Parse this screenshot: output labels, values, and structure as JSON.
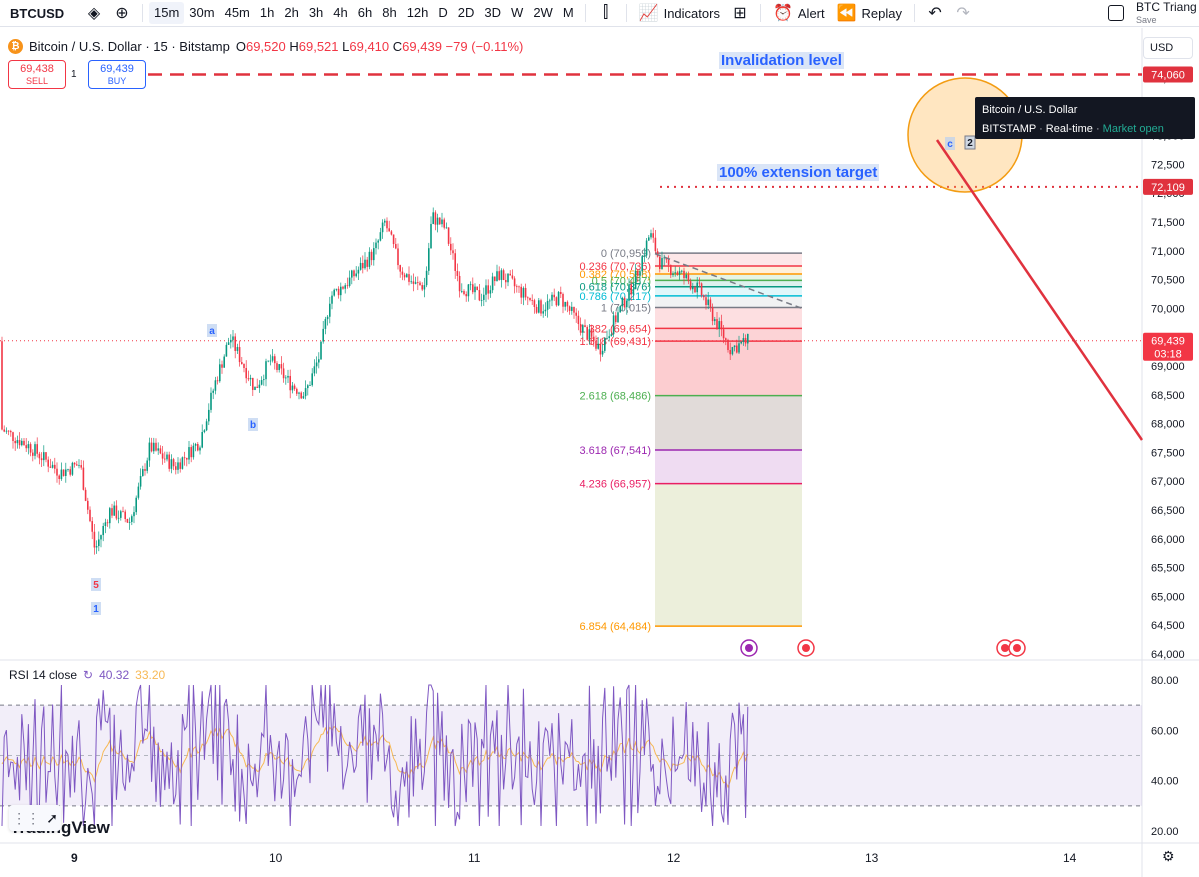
{
  "toolbar": {
    "symbol": "BTCUSD",
    "intervals": [
      "15m",
      "30m",
      "45m",
      "1h",
      "2h",
      "3h",
      "4h",
      "6h",
      "8h",
      "12h",
      "D",
      "2D",
      "3D",
      "W",
      "2W",
      "M"
    ],
    "active_interval": "15m",
    "indicators_label": "Indicators",
    "alert_label": "Alert",
    "replay_label": "Replay",
    "layout_name": "BTC Triang",
    "save_label": "Save"
  },
  "legend": {
    "title": "Bitcoin / U.S. Dollar · 15 · Bitstamp",
    "open_key": "O",
    "open": "69,520",
    "high_key": "H",
    "high": "69,521",
    "low_key": "L",
    "low": "69,410",
    "close_key": "C",
    "close": "69,439",
    "change": "−79 (−0.11%)"
  },
  "trade": {
    "sell_price": "69,438",
    "sell_label": "SELL",
    "buy_price": "69,439",
    "buy_label": "BUY",
    "spread": "1"
  },
  "currency": "USD",
  "tooltip": {
    "title": "Bitcoin / U.S. Dollar",
    "exchange": "BITSTAMP",
    "feed": "Real-time",
    "status": "Market open"
  },
  "annotations": {
    "invalidation": "Invalidation level",
    "extension": "100% extension target",
    "wave_labels": [
      "a",
      "b",
      "5",
      "1",
      "c",
      "2"
    ]
  },
  "price_badges": {
    "invalidation": "74,060",
    "target": "72,109",
    "current": "69,439",
    "countdown": "03:18"
  },
  "fib_levels": [
    {
      "label": "0 (70,959)",
      "price": 70959,
      "color": "#787b86"
    },
    {
      "label": "0.236 (70,736)",
      "price": 70736,
      "color": "#f23645"
    },
    {
      "label": "0.382 (70,598)",
      "price": 70598,
      "color": "#ff9800"
    },
    {
      "label": "0.5 (70,487)",
      "price": 70487,
      "color": "#4caf50"
    },
    {
      "label": "0.618 (70,376)",
      "price": 70376,
      "color": "#089981"
    },
    {
      "label": "0.786 (70,217)",
      "price": 70217,
      "color": "#00bcd4"
    },
    {
      "label": "1 (70,015)",
      "price": 70015,
      "color": "#787b86"
    },
    {
      "label": "1.382 (69,654)",
      "price": 69654,
      "color": "#f23645"
    },
    {
      "label": "1.618 (69,431)",
      "price": 69431,
      "color": "#f23645"
    },
    {
      "label": "2.618 (68,486)",
      "price": 68486,
      "color": "#4caf50"
    },
    {
      "label": "3.618 (67,541)",
      "price": 67541,
      "color": "#9c27b0"
    },
    {
      "label": "4.236 (66,957)",
      "price": 66957,
      "color": "#e91e63"
    },
    {
      "label": "6.854 (64,484)",
      "price": 64484,
      "color": "#ff9800"
    }
  ],
  "price_axis": {
    "ticks": [
      "74,000",
      "73,500",
      "73,000",
      "72,500",
      "72,000",
      "71,500",
      "71,000",
      "70,500",
      "70,000",
      "69,500",
      "69,000",
      "68,500",
      "68,000",
      "67,500",
      "67,000",
      "66,500",
      "66,000",
      "65,500",
      "65,000",
      "64,500",
      "64,000"
    ],
    "min": 64000,
    "max": 74000
  },
  "time_axis": {
    "ticks": [
      "9",
      "10",
      "11",
      "12",
      "13",
      "14"
    ]
  },
  "rsi": {
    "label": "RSI 14 close",
    "value": "40.32",
    "ma_value": "33.20",
    "ticks": [
      "80.00",
      "60.00",
      "40.00",
      "20.00"
    ],
    "upper": 70,
    "lower": 30,
    "line_color": "#7e57c2",
    "ma_color": "#f7b955"
  },
  "branding": "TradingView",
  "colors": {
    "up": "#089981",
    "down": "#f23645",
    "accent": "#2962ff"
  }
}
